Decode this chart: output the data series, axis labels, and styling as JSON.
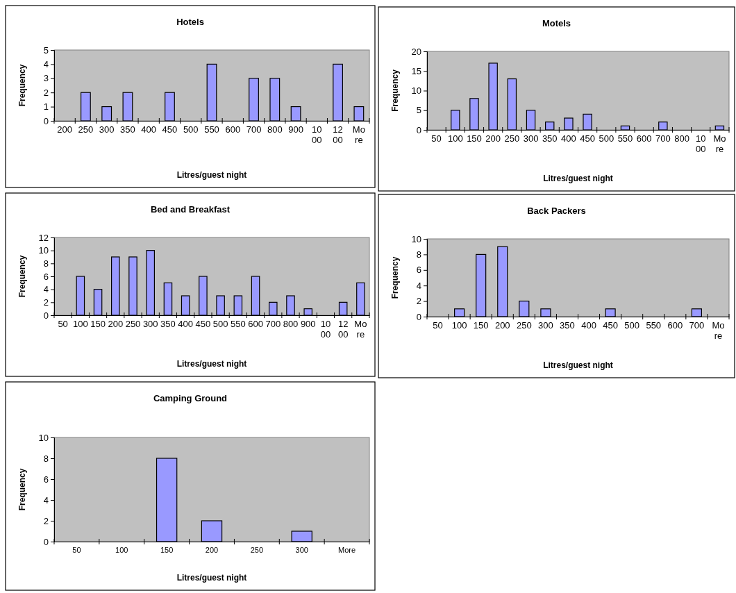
{
  "chart_data": [
    {
      "type": "bar",
      "title": "Hotels",
      "xlabel": "Litres/guest night",
      "ylabel": "Frequency",
      "categories": [
        "200",
        "250",
        "300",
        "350",
        "400",
        "450",
        "500",
        "550",
        "600",
        "700",
        "800",
        "900",
        "1000",
        "1200",
        "More"
      ],
      "values": [
        0,
        2,
        1,
        2,
        0,
        2,
        0,
        4,
        0,
        3,
        3,
        1,
        0,
        4,
        1
      ],
      "color": "#9999ff",
      "ylim": [
        0,
        5
      ],
      "yticks": [
        0,
        1,
        2,
        3,
        4,
        5
      ]
    },
    {
      "type": "bar",
      "title": "Motels",
      "xlabel": "Litres/guest night",
      "ylabel": "Frequency",
      "categories": [
        "50",
        "100",
        "150",
        "200",
        "250",
        "300",
        "350",
        "400",
        "450",
        "500",
        "550",
        "600",
        "700",
        "800",
        "1000",
        "More"
      ],
      "values": [
        0,
        5,
        8,
        17,
        13,
        5,
        2,
        3,
        4,
        0,
        1,
        0,
        2,
        0,
        0,
        1
      ],
      "color": "#9999ff",
      "ylim": [
        0,
        20
      ],
      "yticks": [
        0,
        5,
        10,
        15,
        20
      ]
    },
    {
      "type": "bar",
      "title": "Bed and Breakfast",
      "xlabel": "Litres/guest night",
      "ylabel": "Frequency",
      "categories": [
        "50",
        "100",
        "150",
        "200",
        "250",
        "300",
        "350",
        "400",
        "450",
        "500",
        "550",
        "600",
        "700",
        "800",
        "900",
        "1000",
        "1200",
        "More"
      ],
      "values": [
        0,
        6,
        4,
        9,
        9,
        10,
        5,
        3,
        6,
        3,
        3,
        6,
        2,
        3,
        1,
        0,
        2,
        5
      ],
      "color": "#9999ff",
      "ylim": [
        0,
        12
      ],
      "yticks": [
        0,
        2,
        4,
        6,
        8,
        10,
        12
      ]
    },
    {
      "type": "bar",
      "title": "Back Packers",
      "xlabel": "Litres/guest night",
      "ylabel": "Frequency",
      "categories": [
        "50",
        "100",
        "150",
        "200",
        "250",
        "300",
        "350",
        "400",
        "450",
        "500",
        "550",
        "600",
        "700",
        "More"
      ],
      "values": [
        0,
        1,
        8,
        9,
        2,
        1,
        0,
        0,
        1,
        0,
        0,
        0,
        1,
        0
      ],
      "color": "#9999ff",
      "ylim": [
        0,
        10
      ],
      "yticks": [
        0,
        2,
        4,
        6,
        8,
        10
      ]
    },
    {
      "type": "bar",
      "title": "Camping Ground",
      "xlabel": "Litres/guest night",
      "ylabel": "Frequency",
      "categories": [
        "50",
        "100",
        "150",
        "200",
        "250",
        "300",
        "More"
      ],
      "values": [
        0,
        0,
        8,
        2,
        0,
        1,
        0
      ],
      "color": "#9999ff",
      "ylim": [
        0,
        10
      ],
      "yticks": [
        0,
        2,
        4,
        6,
        8,
        10
      ]
    }
  ]
}
